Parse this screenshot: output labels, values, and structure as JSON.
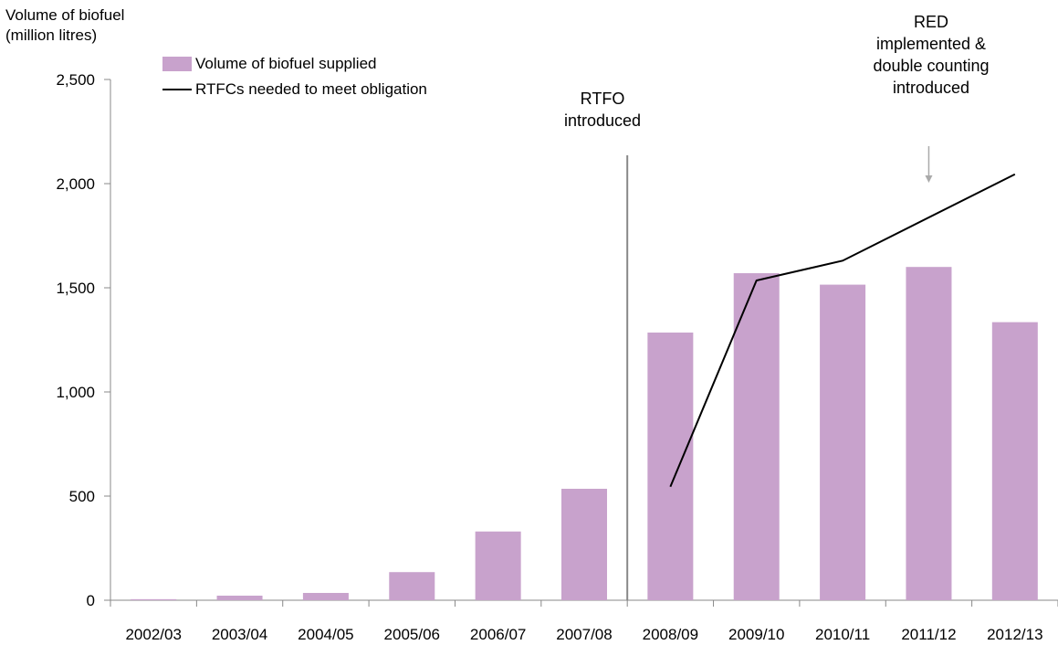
{
  "chart_data": {
    "type": "bar",
    "ylabel_line1": "Volume of biofuel",
    "ylabel_line2": "(million litres)",
    "ylim": [
      0,
      2500
    ],
    "yticks": [
      0,
      500,
      1000,
      1500,
      2000,
      2500
    ],
    "ytick_labels": [
      "0",
      "500",
      "1,000",
      "1,500",
      "2,000",
      "2,500"
    ],
    "categories": [
      "2002/03",
      "2003/04",
      "2004/05",
      "2005/06",
      "2006/07",
      "2007/08",
      "2008/09",
      "2009/10",
      "2010/11",
      "2011/12",
      "2012/13"
    ],
    "series": [
      {
        "name": "Volume of biofuel supplied",
        "type": "bar",
        "color": "#c8a2cc",
        "values": [
          5,
          22,
          35,
          135,
          330,
          535,
          1285,
          1570,
          1515,
          1600,
          1335
        ]
      },
      {
        "name": "RTFCs needed to meet obligation",
        "type": "line",
        "color": "#000000",
        "values": [
          null,
          null,
          null,
          null,
          null,
          null,
          545,
          1535,
          1630,
          null,
          2045
        ]
      }
    ],
    "annotations": [
      {
        "id": "rtfo",
        "line1": "RTFO",
        "line2": "introduced"
      },
      {
        "id": "red",
        "line1": "RED",
        "line2": "implemented &",
        "line3": "double counting",
        "line4": "introduced"
      }
    ],
    "legend_position": "top-left",
    "grid": false
  }
}
